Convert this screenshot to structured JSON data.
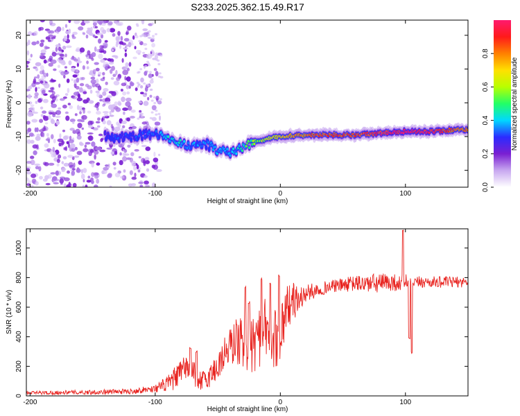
{
  "page": {
    "title": "S233.2025.362.15.49.R17"
  },
  "colorbar": {
    "label": "Normalized spectral amplitude",
    "ticks": [
      "0.0",
      "0.2",
      "0.4",
      "0.6",
      "0.8"
    ],
    "tick_values": [
      0.0,
      0.2,
      0.4,
      0.6,
      0.8
    ],
    "range": [
      0,
      1
    ],
    "colormap": [
      "#ffffff",
      "#c8a8f0",
      "#7a1fd2",
      "#2b2bff",
      "#00d8ff",
      "#22ff66",
      "#b8ff00",
      "#ffe000",
      "#ff8000",
      "#ff1a1a",
      "#ff1a6e"
    ]
  },
  "chart_data": [
    {
      "type": "heatmap",
      "xlabel": "Height of straight line (km)",
      "ylabel": "Frequency (Hz)",
      "xlim": [
        -203,
        150
      ],
      "ylim": [
        -25,
        24.5
      ],
      "x_ticks": [
        "-200",
        "-100",
        "0",
        "100"
      ],
      "x_tick_values": [
        -200,
        -100,
        0,
        100
      ],
      "y_ticks": [
        "20",
        "10",
        "0",
        "-10",
        "-20"
      ],
      "y_tick_values": [
        20,
        10,
        0,
        -10,
        -20
      ],
      "ridge": {
        "x": [
          -140,
          -130,
          -120,
          -110,
          -100,
          -90,
          -80,
          -70,
          -60,
          -50,
          -40,
          -30,
          -20,
          -10,
          0,
          20,
          40,
          60,
          80,
          100,
          120,
          140,
          150
        ],
        "freq": [
          -10,
          -10.5,
          -10,
          -9.5,
          -9,
          -10,
          -12,
          -13,
          -12,
          -14,
          -15,
          -13,
          -11.5,
          -10.5,
          -10,
          -9.5,
          -9.5,
          -9.5,
          -9,
          -8.5,
          -8.5,
          -8,
          -8
        ],
        "amplitude": [
          0.25,
          0.3,
          0.3,
          0.3,
          0.3,
          0.4,
          0.4,
          0.35,
          0.35,
          0.35,
          0.35,
          0.45,
          0.55,
          0.6,
          0.65,
          0.75,
          0.8,
          0.8,
          0.9,
          0.95,
          0.9,
          0.75,
          0.75
        ]
      },
      "noise_region": {
        "x_range": [
          -203,
          -95
        ],
        "freq_range": [
          -25,
          24.5
        ],
        "amplitude_range": [
          0.0,
          0.1
        ]
      }
    },
    {
      "type": "line",
      "xlabel": "Height of straight line (km)",
      "ylabel": "SNR (10 * v/v)",
      "xlim": [
        -203,
        150
      ],
      "ylim": [
        0,
        1130
      ],
      "x_ticks": [
        "-200",
        "-100",
        "0",
        "100"
      ],
      "x_tick_values": [
        -200,
        -100,
        0,
        100
      ],
      "y_ticks": [
        "0",
        "200",
        "400",
        "600",
        "800",
        "1000"
      ],
      "y_tick_values": [
        0,
        200,
        400,
        600,
        800,
        1000
      ],
      "grid": false,
      "series": [
        {
          "color": "#e8231f",
          "envelope": {
            "x": [
              -203,
              -150,
              -120,
              -100,
              -90,
              -80,
              -75,
              -70,
              -65,
              -60,
              -55,
              -50,
              -45,
              -40,
              -35,
              -30,
              -25,
              -20,
              -15,
              -10,
              -5,
              0,
              5,
              10,
              15,
              20,
              30,
              40,
              50,
              60,
              70,
              80,
              90,
              95,
              100,
              105,
              110,
              120,
              130,
              140,
              150
            ],
            "y": [
              20,
              25,
              30,
              50,
              80,
              150,
              200,
              160,
              110,
              100,
              150,
              200,
              280,
              330,
              380,
              350,
              330,
              380,
              430,
              450,
              380,
              440,
              600,
              640,
              650,
              690,
              720,
              740,
              750,
              760,
              760,
              760,
              770,
              760,
              780,
              740,
              770,
              770,
              770,
              770,
              770
            ]
          },
          "jitter": {
            "x": [
              -203,
              -120,
              -100,
              -80,
              -60,
              -40,
              -20,
              0,
              20,
              40,
              80,
              110,
              150
            ],
            "y": [
              12,
              18,
              25,
              90,
              70,
              140,
              230,
              200,
              60,
              40,
              70,
              40,
              35
            ]
          },
          "spikes": [
            {
              "x": -72,
              "y": 330
            },
            {
              "x": -67,
              "y": 310
            },
            {
              "x": -28,
              "y": 740
            },
            {
              "x": -25,
              "y": 640
            },
            {
              "x": -15,
              "y": 800
            },
            {
              "x": -8,
              "y": 770
            },
            {
              "x": -1,
              "y": 820
            },
            {
              "x": 98,
              "y": 1130
            },
            {
              "x": 103,
              "y": 400
            },
            {
              "x": 105,
              "y": 300
            }
          ]
        }
      ]
    }
  ]
}
